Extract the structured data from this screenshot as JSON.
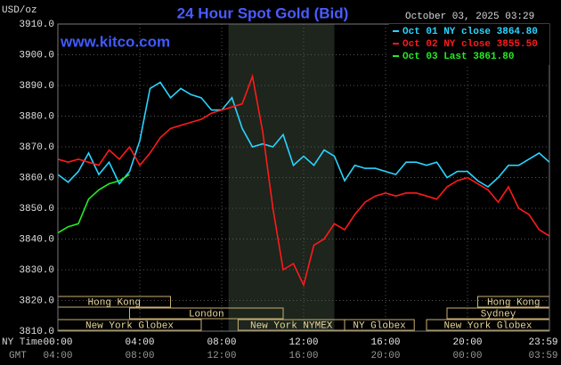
{
  "chart_data": {
    "type": "line",
    "title": "24 Hour Spot Gold (Bid)",
    "y_label": "USD/oz",
    "site": "www.kitco.com",
    "timestamp": "October 03, 2025 03:29",
    "x_label": "NY Time",
    "x2_label": "GMT",
    "x": [
      0,
      0.5,
      1,
      1.5,
      2,
      2.5,
      3,
      3.5,
      4,
      4.5,
      5,
      5.5,
      6,
      6.5,
      7,
      7.5,
      8,
      8.5,
      9,
      9.5,
      10,
      10.5,
      11,
      11.5,
      12,
      12.5,
      13,
      13.5,
      14,
      14.5,
      15,
      15.5,
      16,
      16.5,
      17,
      17.5,
      18,
      18.5,
      19,
      19.5,
      20,
      20.5,
      21,
      21.5,
      22,
      22.5,
      23,
      23.5,
      24
    ],
    "series": [
      {
        "name": "Oct 01 NY close 3864.80",
        "color": "#2ad4ff",
        "values": [
          3861,
          3858.5,
          3862,
          3868,
          3861,
          3865,
          3858,
          3862,
          3872,
          3889,
          3891,
          3886,
          3889,
          3887,
          3886,
          3882,
          3882,
          3886,
          3876,
          3870,
          3871,
          3870,
          3874,
          3864,
          3867,
          3864,
          3869,
          3867,
          3859,
          3864,
          3863,
          3863,
          3862,
          3861,
          3865,
          3865,
          3864,
          3865,
          3860,
          3862,
          3862,
          3859,
          3857,
          3860,
          3864,
          3864,
          3866,
          3868,
          3865
        ]
      },
      {
        "name": "Oct 02 NY close 3855.50",
        "color": "#ff1a1a",
        "values": [
          3866,
          3865,
          3866,
          3865,
          3864,
          3869,
          3866,
          3870,
          3864,
          3868,
          3873,
          3876,
          3877,
          3878,
          3879,
          3881,
          3882,
          3883,
          3884,
          3893,
          3875,
          3850,
          3830,
          3832,
          3825,
          3838,
          3840,
          3845,
          3843,
          3848,
          3852,
          3854,
          3855,
          3854,
          3855,
          3855,
          3854,
          3853,
          3857,
          3859,
          3860,
          3858,
          3856,
          3852,
          3857,
          3850,
          3848,
          3843,
          3841
        ]
      },
      {
        "name": "Oct 03 Last 3861.80",
        "color": "#22ee22",
        "values": [
          3842,
          3844,
          3845,
          3853,
          3856,
          3858,
          3859,
          3861,
          null,
          null,
          null,
          null,
          null,
          null,
          null,
          null,
          null,
          null,
          null,
          null,
          null,
          null,
          null,
          null,
          null,
          null,
          null,
          null,
          null,
          null,
          null,
          null,
          null,
          null,
          null,
          null,
          null,
          null,
          null,
          null,
          null,
          null,
          null,
          null,
          null,
          null,
          null,
          null,
          null
        ]
      }
    ],
    "xlim": [
      0,
      24
    ],
    "ylim": [
      3810,
      3910
    ],
    "xticks": [
      {
        "value": 0,
        "label": "00:00"
      },
      {
        "value": 4,
        "label": "04:00"
      },
      {
        "value": 8,
        "label": "08:00"
      },
      {
        "value": 12,
        "label": "12:00"
      },
      {
        "value": 16,
        "label": "16:00"
      },
      {
        "value": 20,
        "label": "20:00"
      },
      {
        "value": 23.98,
        "label": "23:59"
      }
    ],
    "x2ticks": [
      {
        "value": 0,
        "label": "04:00"
      },
      {
        "value": 4,
        "label": "08:00"
      },
      {
        "value": 8,
        "label": "12:00"
      },
      {
        "value": 12,
        "label": "16:00"
      },
      {
        "value": 16,
        "label": "20:00"
      },
      {
        "value": 20,
        "label": "00:00"
      },
      {
        "value": 23.98,
        "label": "03:59"
      }
    ],
    "yticks": [
      {
        "value": 3810,
        "label": "3810.0"
      },
      {
        "value": 3820,
        "label": "3820.0"
      },
      {
        "value": 3830,
        "label": "3830.0"
      },
      {
        "value": 3840,
        "label": "3840.0"
      },
      {
        "value": 3850,
        "label": "3850.0"
      },
      {
        "value": 3860,
        "label": "3860.0"
      },
      {
        "value": 3870,
        "label": "3870.0"
      },
      {
        "value": 3880,
        "label": "3880.0"
      },
      {
        "value": 3890,
        "label": "3890.0"
      },
      {
        "value": 3900,
        "label": "3900.0"
      },
      {
        "value": 3910,
        "label": "3910.0"
      }
    ],
    "grid": true,
    "legend": "upper right",
    "highlight": [
      8.33,
      13.5
    ],
    "sessions": [
      [
        {
          "label": "Hong Kong",
          "start": 0,
          "end": 5.5
        },
        {
          "label": "Hong Kong",
          "start": 20.5,
          "end": 24
        }
      ],
      [
        {
          "label": "London",
          "start": 3.5,
          "end": 11
        },
        {
          "label": "Sydney",
          "start": 19,
          "end": 24
        }
      ],
      [
        {
          "label": "New York Globex",
          "start": 0,
          "end": 7
        },
        {
          "label": "New York NYMEX",
          "start": 8.8,
          "end": 14
        },
        {
          "label": "NY Globex",
          "start": 14,
          "end": 17.4
        },
        {
          "label": "New York Globex",
          "start": 18,
          "end": 24
        }
      ]
    ]
  }
}
